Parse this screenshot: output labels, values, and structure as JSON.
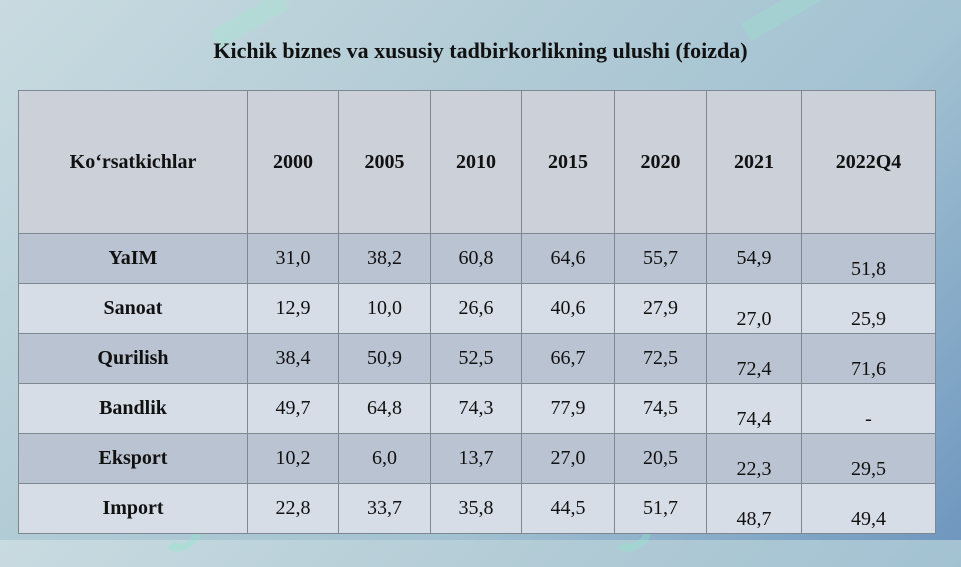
{
  "title": "Kichik biznes va xususiy tadbirkorlikning ulushi (foizda)",
  "table": {
    "headers": [
      "Ko‘rsatkichlar",
      "2000",
      "2005",
      "2010",
      "2015",
      "2020",
      "2021",
      "2022Q4"
    ],
    "rows": [
      {
        "label": "YaIM",
        "values": [
          "31,0",
          "38,2",
          "60,8",
          "64,6",
          "55,7",
          "54,9",
          "51,8"
        ]
      },
      {
        "label": "Sanoat",
        "values": [
          "12,9",
          "10,0",
          "26,6",
          "40,6",
          "27,9",
          "27,0",
          "25,9"
        ]
      },
      {
        "label": "Qurilish",
        "values": [
          "38,4",
          "50,9",
          "52,5",
          "66,7",
          "72,5",
          "72,4",
          "71,6"
        ]
      },
      {
        "label": "Bandlik",
        "values": [
          "49,7",
          "64,8",
          "74,3",
          "77,9",
          "74,5",
          "74,4",
          "-"
        ]
      },
      {
        "label": "Eksport",
        "values": [
          "10,2",
          "6,0",
          "13,7",
          "27,0",
          "20,5",
          "22,3",
          "29,5"
        ]
      },
      {
        "label": "Import",
        "values": [
          "22,8",
          "33,7",
          "35,8",
          "44,5",
          "51,7",
          "48,7",
          "49,4"
        ]
      }
    ]
  }
}
